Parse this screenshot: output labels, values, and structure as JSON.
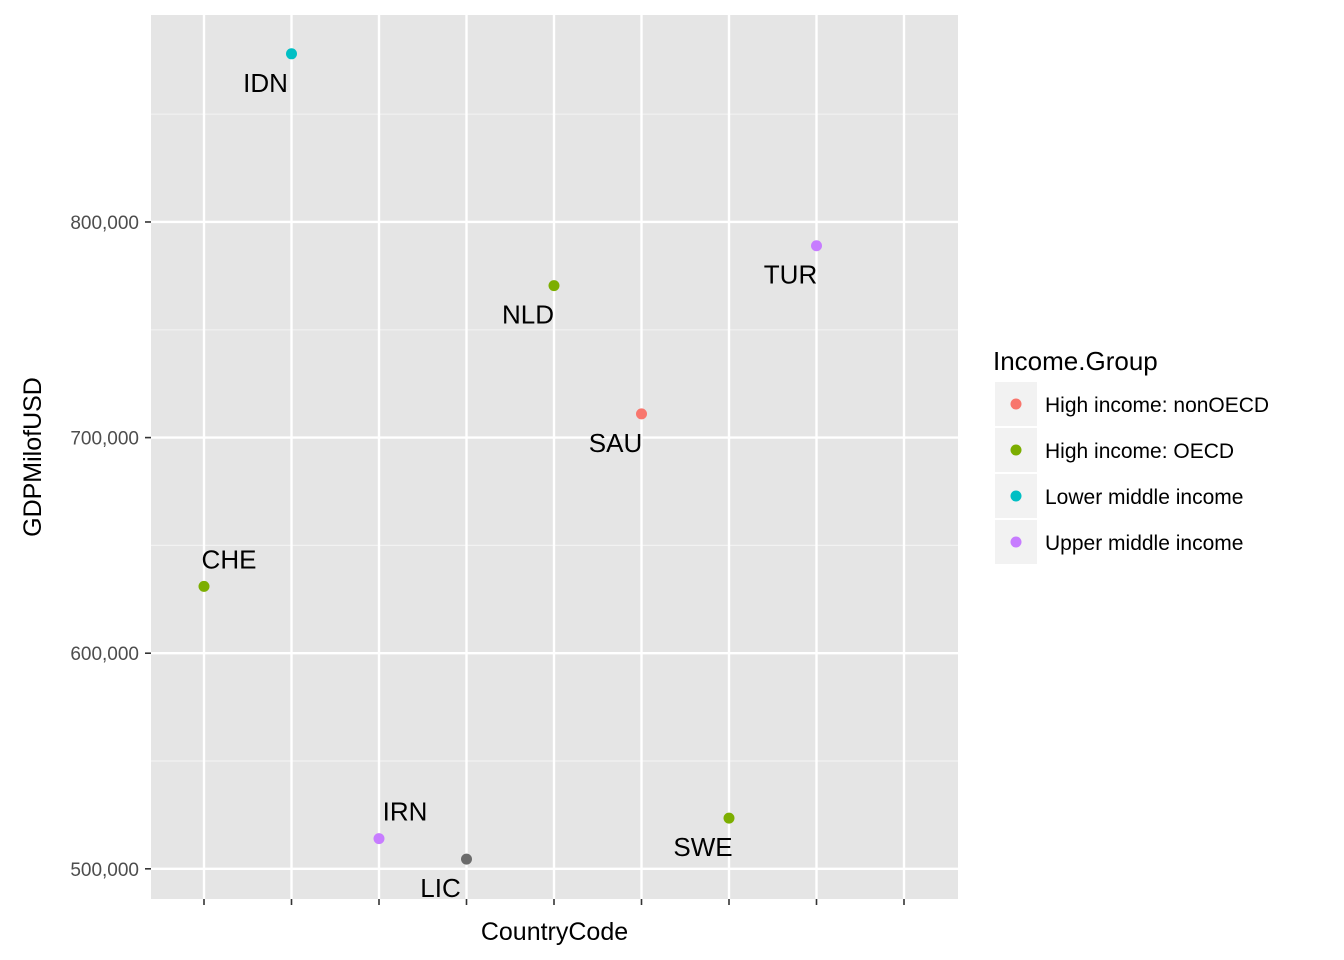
{
  "chart_data": {
    "type": "scatter",
    "xlabel": "CountryCode",
    "ylabel": "GDPMilofUSD",
    "y_ticks": [
      500000,
      600000,
      700000,
      800000
    ],
    "y_tick_labels": [
      "500,000",
      "600,000",
      "700,000",
      "800,000"
    ],
    "ylim": [
      486000,
      896000
    ],
    "x_tick_labels_shown": false,
    "grid": true,
    "legend": {
      "title": "Income.Group",
      "position": "right",
      "entries": [
        {
          "label": "High income: nonOECD",
          "color": "#F8766D"
        },
        {
          "label": "High income: OECD",
          "color": "#7CAE00"
        },
        {
          "label": "Lower middle income",
          "color": "#00BFC4"
        },
        {
          "label": "Upper middle income",
          "color": "#C77CFF"
        }
      ]
    },
    "categories": [
      "CHE",
      "IDN",
      "IRN",
      "LIC",
      "NLD",
      "SAU",
      "SWE",
      "TUR"
    ],
    "points": [
      {
        "label": "CHE",
        "x": "CHE",
        "y": 631000,
        "group": "High income: OECD",
        "color": "#7CAE00",
        "label_pos": "above"
      },
      {
        "label": "IDN",
        "x": "IDN",
        "y": 878000,
        "group": "Lower middle income",
        "color": "#00BFC4",
        "label_pos": "below-left"
      },
      {
        "label": "IRN",
        "x": "IRN",
        "y": 514000,
        "group": "Upper middle income",
        "color": "#C77CFF",
        "label_pos": "above-right"
      },
      {
        "label": "LIC",
        "x": "LIC",
        "y": 504500,
        "group": "",
        "color": "#6B6B6B",
        "label_pos": "below-left"
      },
      {
        "label": "NLD",
        "x": "NLD",
        "y": 770500,
        "group": "High income: OECD",
        "color": "#7CAE00",
        "label_pos": "below-left"
      },
      {
        "label": "SAU",
        "x": "SAU",
        "y": 711000,
        "group": "High income: nonOECD",
        "color": "#F8766D",
        "label_pos": "below-left"
      },
      {
        "label": "SWE",
        "x": "SWE",
        "y": 523500,
        "group": "High income: OECD",
        "color": "#7CAE00",
        "label_pos": "below-left"
      },
      {
        "label": "TUR",
        "x": "TUR",
        "y": 789000,
        "group": "Upper middle income",
        "color": "#C77CFF",
        "label_pos": "below-left"
      }
    ]
  }
}
